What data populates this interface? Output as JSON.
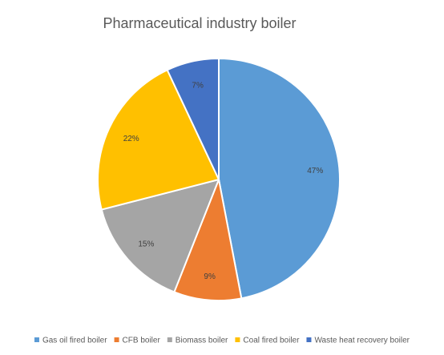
{
  "chart_data": {
    "type": "pie",
    "title": "Pharmaceutical industry boiler",
    "categories": [
      "Gas oil fired boiler",
      "CFB boiler",
      "Biomass boiler",
      "Coal fired boiler",
      "Waste heat recovery boiler"
    ],
    "values": [
      47,
      9,
      15,
      22,
      7
    ],
    "labels": [
      "47%",
      "9%",
      "15%",
      "22%",
      "7%"
    ],
    "colors": [
      "#5B9BD5",
      "#ED7D31",
      "#A5A5A5",
      "#FFC000",
      "#4472C4"
    ],
    "legend_position": "bottom",
    "start_angle": "12 o'clock",
    "direction": "clockwise"
  }
}
